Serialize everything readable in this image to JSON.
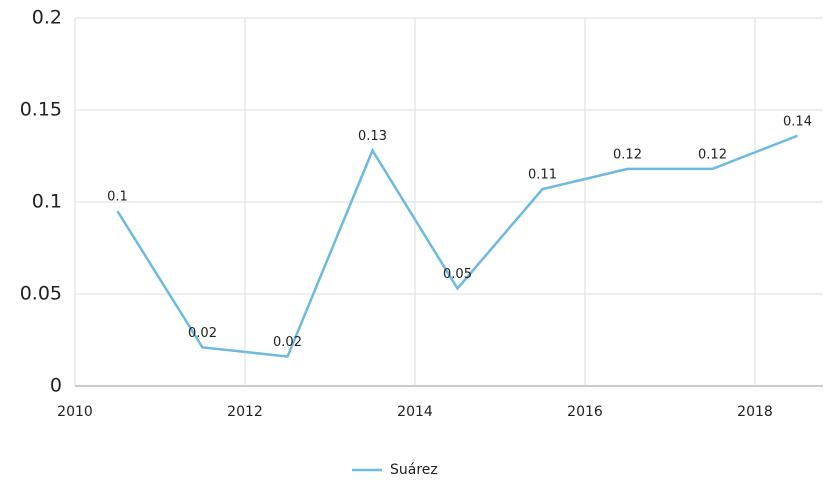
{
  "chart_data": {
    "type": "line",
    "x": [
      2010.5,
      2011.5,
      2012.5,
      2013.5,
      2014.5,
      2015.5,
      2016.5,
      2017.5,
      2018.5
    ],
    "series": [
      {
        "name": "Suárez",
        "color": "#6cbadf",
        "values": [
          0.095,
          0.021,
          0.016,
          0.128,
          0.053,
          0.107,
          0.118,
          0.118,
          0.136
        ],
        "value_labels": [
          "0.1",
          "0.02",
          "0.02",
          "0.13",
          "0.05",
          "0.11",
          "0.12",
          "0.12",
          "0.14"
        ]
      }
    ],
    "xlim": [
      2010,
      2018.8
    ],
    "xticks": [
      2010,
      2012,
      2014,
      2016,
      2018
    ],
    "ylim": [
      0,
      0.2
    ],
    "yticks": [
      0,
      0.05,
      0.1,
      0.15,
      0.2
    ],
    "grid": true,
    "legend": "bottom"
  }
}
